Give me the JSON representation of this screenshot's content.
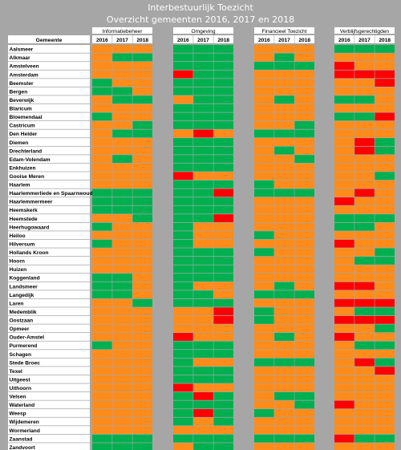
{
  "title": "Interbestuurlijk Toezicht",
  "subtitle": "Overzicht gemeenten 2016, 2017 en 2018",
  "colors": {
    "green": "#00b050",
    "orange": "#ff8c1a",
    "red": "#ff0000",
    "background": "#a6a6a6"
  },
  "chart_data": {
    "type": "table",
    "row_header": "Gemeente",
    "groups": [
      "Informatiebeheer",
      "Omgeving",
      "Financieel Toezicht",
      "Verblijfsgerechtigden"
    ],
    "years": [
      "2016",
      "2017",
      "2018"
    ],
    "legend": {
      "G": "green",
      "O": "orange",
      "R": "red"
    },
    "rows": [
      {
        "name": "Aalsmeer",
        "values": [
          "OOO",
          "GGG",
          "OOO",
          "GGG"
        ]
      },
      {
        "name": "Alkmaar",
        "values": [
          "OGG",
          "GGG",
          "OGO",
          "OOO"
        ]
      },
      {
        "name": "Amstelveen",
        "values": [
          "OOO",
          "GGG",
          "GGG",
          "ROO"
        ]
      },
      {
        "name": "Amsterdam",
        "values": [
          "OOO",
          "RGG",
          "OOO",
          "RRR"
        ]
      },
      {
        "name": "Beemster",
        "values": [
          "GOO",
          "GGG",
          "OOO",
          "OOR"
        ]
      },
      {
        "name": "Bergen",
        "values": [
          "GGO",
          "GGG",
          "OOO",
          "OOO"
        ]
      },
      {
        "name": "Beverwijk",
        "values": [
          "OGG",
          "OGG",
          "OGO",
          "GGO"
        ]
      },
      {
        "name": "Blaricum",
        "values": [
          "OOO",
          "GGG",
          "OOO",
          "OOO"
        ]
      },
      {
        "name": "Bloemendaal",
        "values": [
          "GOO",
          "GGG",
          "OOO",
          "GGR"
        ]
      },
      {
        "name": "Castricum",
        "values": [
          "OOG",
          "GGG",
          "OOG",
          "OOO"
        ]
      },
      {
        "name": "Den Helder",
        "values": [
          "OGG",
          "ORO",
          "GGG",
          "OOO"
        ]
      },
      {
        "name": "Diemen",
        "values": [
          "OOO",
          "GGG",
          "OOO",
          "ORG"
        ]
      },
      {
        "name": "Drechterland",
        "values": [
          "OOO",
          "GGG",
          "OGO",
          "ORG"
        ]
      },
      {
        "name": "Edam-Volendam",
        "values": [
          "OGO",
          "GGG",
          "OOG",
          "OOO"
        ]
      },
      {
        "name": "Enkhuizen",
        "values": [
          "OOO",
          "GGG",
          "OOO",
          "OOO"
        ]
      },
      {
        "name": "Gooise Meren",
        "values": [
          "OOO",
          "ROO",
          "OOO",
          "OOG"
        ]
      },
      {
        "name": "Haarlem",
        "values": [
          "OOO",
          "GGG",
          "GOO",
          "OOO"
        ]
      },
      {
        "name": "Haarlemmerliede en Spaarnwoude",
        "values": [
          "GGG",
          "GGR",
          "GGG",
          "ORO"
        ]
      },
      {
        "name": "Haarlemmermeer",
        "values": [
          "GGG",
          "GGG",
          "OOO",
          "ROO"
        ]
      },
      {
        "name": "Heemskerk",
        "values": [
          "GGG",
          "GGG",
          "OOO",
          "OOO"
        ]
      },
      {
        "name": "Heemstede",
        "values": [
          "OOG",
          "GGR",
          "OOO",
          "GGG"
        ]
      },
      {
        "name": "Heerhugowaard",
        "values": [
          "GOO",
          "GOO",
          "OOO",
          "GGO"
        ]
      },
      {
        "name": "Heiloo",
        "values": [
          "OOO",
          "GOO",
          "GOO",
          "OOO"
        ]
      },
      {
        "name": "Hilversum",
        "values": [
          "GOO",
          "GOO",
          "OOO",
          "ROO"
        ]
      },
      {
        "name": "Hollands Kroon",
        "values": [
          "OOO",
          "GGG",
          "GOO",
          "OOG"
        ]
      },
      {
        "name": "Hoorn",
        "values": [
          "OOO",
          "GGG",
          "OOO",
          "OGG"
        ]
      },
      {
        "name": "Huizen",
        "values": [
          "OOO",
          "GGG",
          "OOO",
          "OOO"
        ]
      },
      {
        "name": "Koggenland",
        "values": [
          "GGO",
          "GGG",
          "OOO",
          "OOO"
        ]
      },
      {
        "name": "Landsmeer",
        "values": [
          "GGO",
          "GOO",
          "OGO",
          "RRO"
        ]
      },
      {
        "name": "Langedijk",
        "values": [
          "GGO",
          "GGO",
          "GGG",
          "OOO"
        ]
      },
      {
        "name": "Laren",
        "values": [
          "OOG",
          "GGG",
          "OOO",
          "RRR"
        ]
      },
      {
        "name": "Medemblik",
        "values": [
          "OOO",
          "OOR",
          "GOO",
          "OGG"
        ]
      },
      {
        "name": "Oostzaan",
        "values": [
          "OOO",
          "OOR",
          "GOO",
          "RRR"
        ]
      },
      {
        "name": "Opmeer",
        "values": [
          "OOO",
          "OOO",
          "OOO",
          "OOG"
        ]
      },
      {
        "name": "Ouder-Amstel",
        "values": [
          "OOO",
          "ROO",
          "OGO",
          "ROO"
        ]
      },
      {
        "name": "Purmerend",
        "values": [
          "GOO",
          "GGG",
          "OOO",
          "OGG"
        ]
      },
      {
        "name": "Schagen",
        "values": [
          "OOO",
          "GGG",
          "OOO",
          "OOO"
        ]
      },
      {
        "name": "Stede Broec",
        "values": [
          "OOO",
          "GOO",
          "GGG",
          "ORG"
        ]
      },
      {
        "name": "Texel",
        "values": [
          "OOO",
          "GGG",
          "OOO",
          "OOR"
        ]
      },
      {
        "name": "Uitgeest",
        "values": [
          "OOO",
          "GGG",
          "OOO",
          "OOO"
        ]
      },
      {
        "name": "Uithoorn",
        "values": [
          "OOO",
          "ROO",
          "OOO",
          "OOO"
        ]
      },
      {
        "name": "Velsen",
        "values": [
          "OOO",
          "GRG",
          "OGG",
          "OOO"
        ]
      },
      {
        "name": "Waterland",
        "values": [
          "OOO",
          "GGG",
          "OOG",
          "ROO"
        ]
      },
      {
        "name": "Weesp",
        "values": [
          "OOO",
          "GRG",
          "GOO",
          "OOO"
        ]
      },
      {
        "name": "Wijdemeren",
        "values": [
          "OOO",
          "GOG",
          "OOO",
          "OOO"
        ]
      },
      {
        "name": "Wormerland",
        "values": [
          "OOO",
          "OOO",
          "OOO",
          "OOO"
        ]
      },
      {
        "name": "Zaanstad",
        "values": [
          "GGG",
          "GGG",
          "GGG",
          "RGG"
        ]
      },
      {
        "name": "Zandvoort",
        "values": [
          "GGG",
          "OGG",
          "OOO",
          "OOO"
        ]
      }
    ]
  }
}
